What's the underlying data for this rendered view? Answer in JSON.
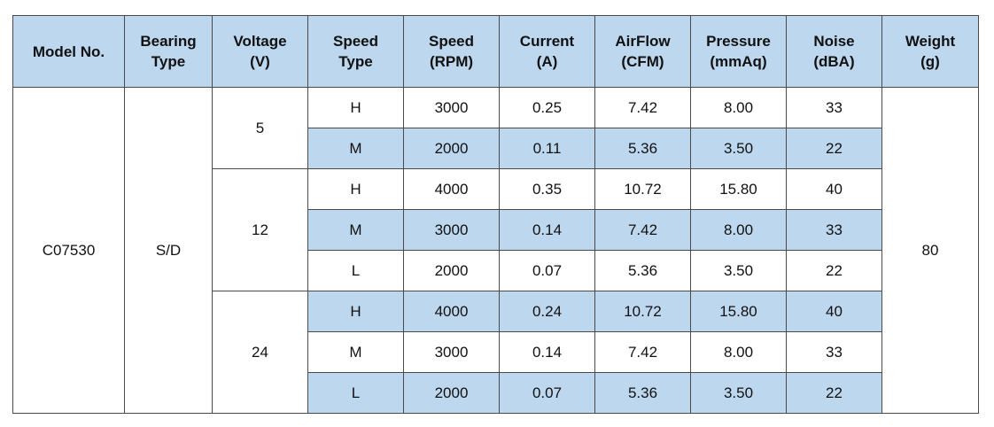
{
  "table": {
    "headers": [
      [
        "Model No."
      ],
      [
        "Bearing",
        "Type"
      ],
      [
        "Voltage",
        "(V)"
      ],
      [
        "Speed",
        "Type"
      ],
      [
        "Speed",
        "(RPM)"
      ],
      [
        "Current",
        "(A)"
      ],
      [
        "AirFlow",
        "(CFM)"
      ],
      [
        "Pressure",
        "(mmAq)"
      ],
      [
        "Noise",
        "(dBA)"
      ],
      [
        "Weight",
        "(g)"
      ]
    ],
    "model": "C07530",
    "bearing": "S/D",
    "weight": "80",
    "voltage_groups": [
      {
        "voltage": "5",
        "rows": [
          {
            "speed_type": "H",
            "rpm": "3000",
            "current": "0.25",
            "airflow": "7.42",
            "pressure": "8.00",
            "noise": "33"
          },
          {
            "speed_type": "M",
            "rpm": "2000",
            "current": "0.11",
            "airflow": "5.36",
            "pressure": "3.50",
            "noise": "22"
          }
        ]
      },
      {
        "voltage": "12",
        "rows": [
          {
            "speed_type": "H",
            "rpm": "4000",
            "current": "0.35",
            "airflow": "10.72",
            "pressure": "15.80",
            "noise": "40"
          },
          {
            "speed_type": "M",
            "rpm": "3000",
            "current": "0.14",
            "airflow": "7.42",
            "pressure": "8.00",
            "noise": "33"
          },
          {
            "speed_type": "L",
            "rpm": "2000",
            "current": "0.07",
            "airflow": "5.36",
            "pressure": "3.50",
            "noise": "22"
          }
        ]
      },
      {
        "voltage": "24",
        "rows": [
          {
            "speed_type": "H",
            "rpm": "4000",
            "current": "0.24",
            "airflow": "10.72",
            "pressure": "15.80",
            "noise": "40"
          },
          {
            "speed_type": "M",
            "rpm": "3000",
            "current": "0.14",
            "airflow": "7.42",
            "pressure": "8.00",
            "noise": "33"
          },
          {
            "speed_type": "L",
            "rpm": "2000",
            "current": "0.07",
            "airflow": "5.36",
            "pressure": "3.50",
            "noise": "22"
          }
        ]
      }
    ]
  }
}
